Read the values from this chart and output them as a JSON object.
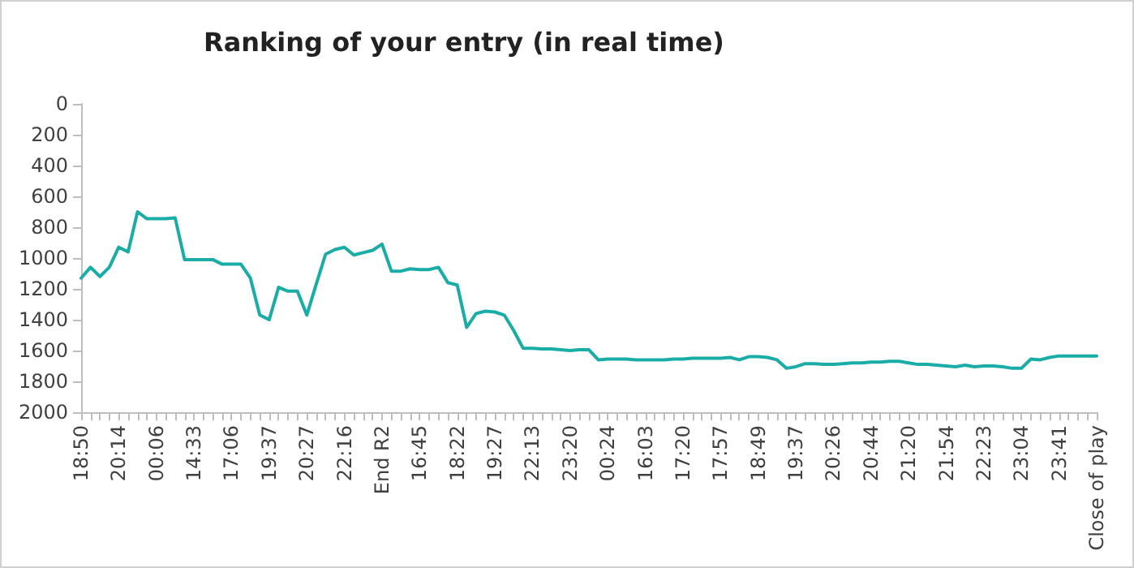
{
  "chart_data": {
    "type": "line",
    "title": "Ranking of your entry (in real time)",
    "categories": [
      "18:50",
      null,
      null,
      null,
      "20:14",
      null,
      null,
      null,
      "00:06",
      null,
      null,
      null,
      "14:33",
      null,
      null,
      null,
      "17:06",
      null,
      null,
      null,
      "19:37",
      null,
      null,
      null,
      "20:27",
      null,
      null,
      null,
      "22:16",
      null,
      null,
      null,
      "End R2",
      null,
      null,
      null,
      "16:45",
      null,
      null,
      null,
      "18:22",
      null,
      null,
      null,
      "19:27",
      null,
      null,
      null,
      "22:13",
      null,
      null,
      null,
      "23:20",
      null,
      null,
      null,
      "00:24",
      null,
      null,
      null,
      "16:03",
      null,
      null,
      null,
      "17:20",
      null,
      null,
      null,
      "17:57",
      null,
      null,
      null,
      "18:49",
      null,
      null,
      null,
      "19:37",
      null,
      null,
      null,
      "20:26",
      null,
      null,
      null,
      "20:44",
      null,
      null,
      null,
      "21:20",
      null,
      null,
      null,
      "21:54",
      null,
      null,
      null,
      "22:23",
      null,
      null,
      null,
      "23:04",
      null,
      null,
      null,
      "23:41",
      null,
      null,
      null,
      "Close of play"
    ],
    "series": [
      {
        "color": "#1aada8",
        "values": [
          1130,
          1060,
          1120,
          1060,
          930,
          960,
          700,
          745,
          745,
          745,
          740,
          1010,
          1010,
          1010,
          1010,
          1040,
          1040,
          1040,
          1130,
          1370,
          1400,
          1190,
          1215,
          1215,
          1370,
          1170,
          975,
          945,
          930,
          980,
          965,
          950,
          910,
          1085,
          1085,
          1070,
          1075,
          1075,
          1060,
          1160,
          1175,
          1450,
          1360,
          1345,
          1350,
          1370,
          1470,
          1585,
          1585,
          1590,
          1590,
          1595,
          1600,
          1595,
          1595,
          1660,
          1655,
          1655,
          1655,
          1660,
          1660,
          1660,
          1660,
          1655,
          1655,
          1650,
          1650,
          1650,
          1650,
          1645,
          1660,
          1640,
          1640,
          1645,
          1660,
          1715,
          1705,
          1685,
          1685,
          1690,
          1690,
          1685,
          1680,
          1680,
          1675,
          1675,
          1670,
          1670,
          1680,
          1690,
          1690,
          1695,
          1700,
          1705,
          1695,
          1705,
          1700,
          1700,
          1705,
          1715,
          1715,
          1655,
          1660,
          1645,
          1635,
          1635,
          1635,
          1635,
          1635
        ]
      }
    ],
    "ylim": [
      2000,
      0
    ],
    "yticks": [
      0,
      200,
      400,
      600,
      800,
      1000,
      1200,
      1400,
      1600,
      1800,
      2000
    ],
    "grid": false,
    "marker": "none",
    "line_style": "solid"
  }
}
